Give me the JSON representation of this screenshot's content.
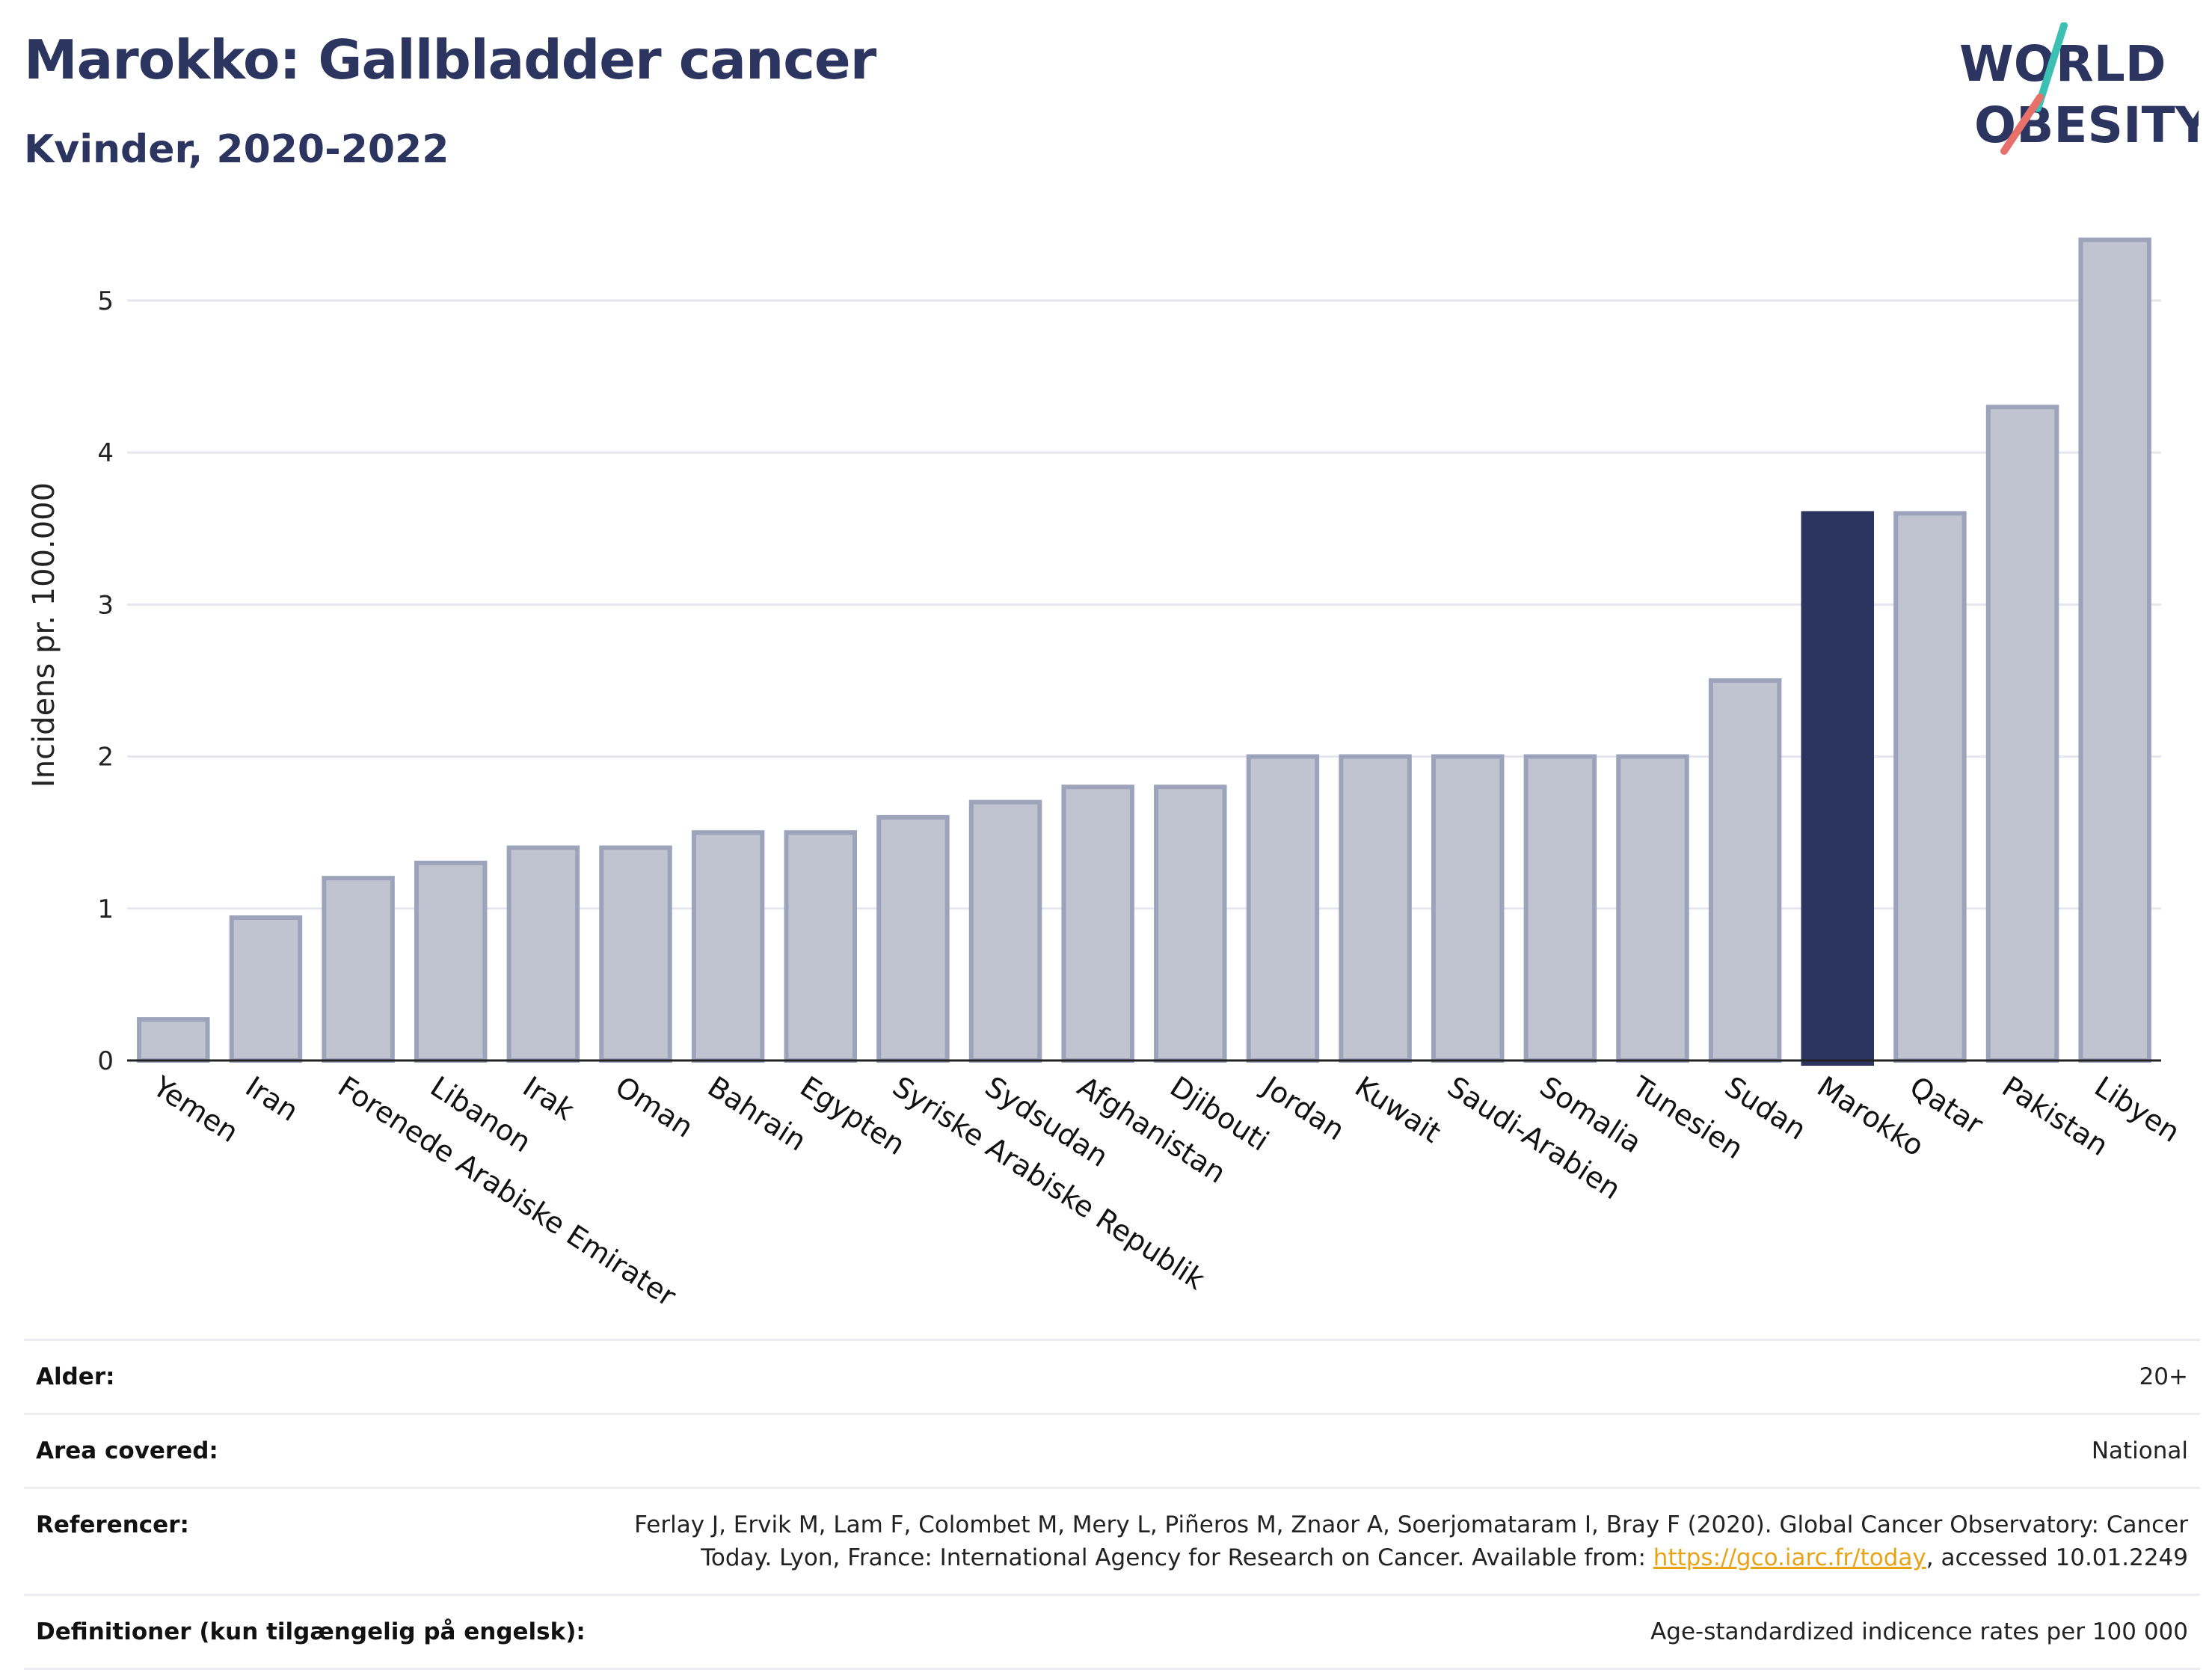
{
  "header": {
    "title": "Marokko: Gallbladder cancer",
    "subtitle": "Kvinder, 2020-2022",
    "logo_line1": "WORLD",
    "logo_line2": "OBESITY"
  },
  "colors": {
    "title": "#2b3560",
    "bar_default": "#c0c3d0",
    "bar_default_border": "#9da3ba",
    "bar_highlight": "#2b3560",
    "logo_text": "#2b3560",
    "logo_teal": "#3cc0b4",
    "logo_coral": "#e8706a",
    "link": "#e8a317"
  },
  "chart_data": {
    "type": "bar",
    "ylabel": "Incidens pr. 100.000",
    "ylim": [
      0,
      5.6
    ],
    "yticks": [
      0,
      1,
      2,
      3,
      4,
      5
    ],
    "grid": true,
    "highlight": "Marokko",
    "categories": [
      "Yemen",
      "Iran",
      "Forenede Arabiske Emirater",
      "Libanon",
      "Irak",
      "Oman",
      "Bahrain",
      "Egypten",
      "Syriske Arabiske Republik",
      "Sydsudan",
      "Afghanistan",
      "Djibouti",
      "Jordan",
      "Kuwait",
      "Saudi-Arabien",
      "Somalia",
      "Tunesien",
      "Sudan",
      "Marokko",
      "Qatar",
      "Pakistan",
      "Libyen"
    ],
    "values": [
      0.27,
      0.94,
      1.2,
      1.3,
      1.4,
      1.4,
      1.5,
      1.5,
      1.6,
      1.7,
      1.8,
      1.8,
      2.0,
      2.0,
      2.0,
      2.0,
      2.0,
      2.5,
      3.6,
      3.6,
      4.3,
      5.4
    ]
  },
  "meta": {
    "rows": [
      {
        "label": "Alder:",
        "value": "20+"
      },
      {
        "label": "Area covered:",
        "value": "National"
      },
      {
        "label": "Referencer:",
        "value_before": "Ferlay J, Ervik M, Lam F, Colombet M, Mery L, Piñeros M, Znaor A, Soerjomataram I, Bray F (2020). Global Cancer Observatory: Cancer Today. Lyon, France: International Agency for Research on Cancer. Available from: ",
        "link": "https://gco.iarc.fr/today",
        "value_after": ", accessed 10.01.2249"
      },
      {
        "label": "Definitioner (kun tilgængelig på engelsk):",
        "value": "Age-standardized indicence rates per 100 000"
      }
    ]
  }
}
